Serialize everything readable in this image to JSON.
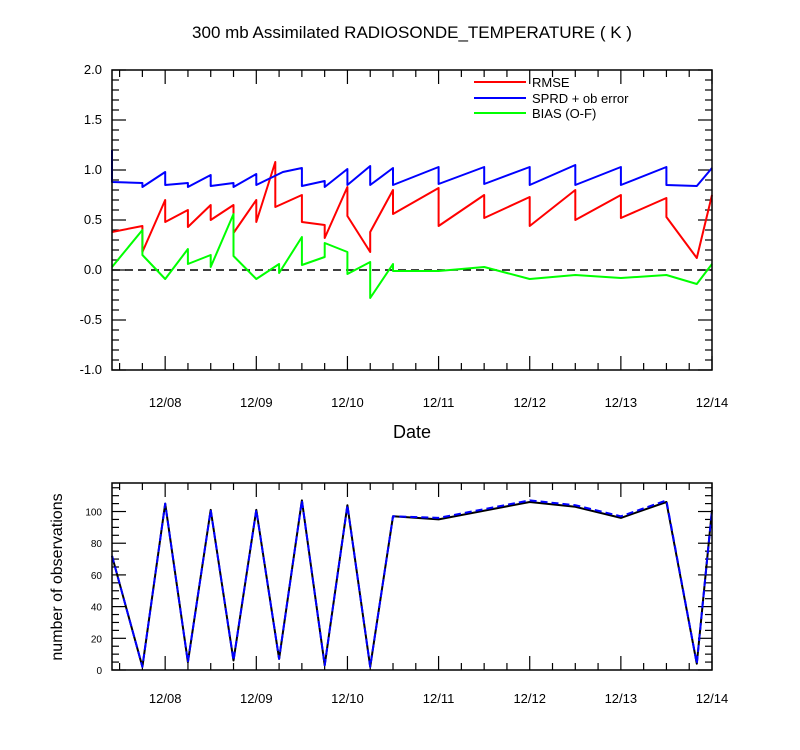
{
  "chart_data": [
    {
      "type": "line",
      "title": "300 mb Assimilated RADIOSONDE_TEMPERATURE ( K )",
      "xlabel": "Date",
      "ylabel": "",
      "ylim": [
        -1.0,
        2.0
      ],
      "yticks": [
        "2.0",
        "1.5",
        "1.0",
        "0.5",
        "0.0",
        "-0.5",
        "-1.0"
      ],
      "xticks": [
        "12/08",
        "12/09",
        "12/10",
        "12/11",
        "12/12",
        "12/13",
        "12/14"
      ],
      "xlim": [
        "12/07 10:00",
        "12/14 00:00"
      ],
      "reference_line": 0.0,
      "legend_position": "top-right",
      "series": [
        {
          "name": "RMSE",
          "color": "#ff0000",
          "points": [
            [
              "12/07 10:00",
              0.38
            ],
            [
              "12/07 18:00",
              0.44
            ],
            [
              "12/07 18:00",
              0.18
            ],
            [
              "12/08 00:00",
              0.7
            ],
            [
              "12/08 00:00",
              0.48
            ],
            [
              "12/08 06:00",
              0.6
            ],
            [
              "12/08 06:00",
              0.43
            ],
            [
              "12/08 12:00",
              0.65
            ],
            [
              "12/08 12:00",
              0.5
            ],
            [
              "12/08 18:00",
              0.65
            ],
            [
              "12/08 18:00",
              0.37
            ],
            [
              "12/09 00:00",
              0.7
            ],
            [
              "12/09 00:00",
              0.48
            ],
            [
              "12/09 05:00",
              1.08
            ],
            [
              "12/09 05:00",
              0.63
            ],
            [
              "12/09 12:00",
              0.75
            ],
            [
              "12/09 12:00",
              0.48
            ],
            [
              "12/09 18:00",
              0.45
            ],
            [
              "12/09 18:00",
              0.32
            ],
            [
              "12/10 00:00",
              0.83
            ],
            [
              "12/10 00:00",
              0.54
            ],
            [
              "12/10 06:00",
              0.18
            ],
            [
              "12/10 06:00",
              0.38
            ],
            [
              "12/10 12:00",
              0.8
            ],
            [
              "12/10 12:00",
              0.56
            ],
            [
              "12/11 00:00",
              0.82
            ],
            [
              "12/11 00:00",
              0.44
            ],
            [
              "12/11 12:00",
              0.75
            ],
            [
              "12/11 12:00",
              0.52
            ],
            [
              "12/12 00:00",
              0.73
            ],
            [
              "12/12 00:00",
              0.44
            ],
            [
              "12/12 12:00",
              0.8
            ],
            [
              "12/12 12:00",
              0.5
            ],
            [
              "12/13 00:00",
              0.75
            ],
            [
              "12/13 00:00",
              0.52
            ],
            [
              "12/13 12:00",
              0.72
            ],
            [
              "12/13 12:00",
              0.53
            ],
            [
              "12/13 20:00",
              0.12
            ],
            [
              "12/14 00:00",
              0.75
            ]
          ]
        },
        {
          "name": "SPRD + ob error",
          "color": "#0000ff",
          "points": [
            [
              "12/07 10:00",
              1.2
            ],
            [
              "12/07 10:00",
              0.88
            ],
            [
              "12/07 18:00",
              0.87
            ],
            [
              "12/07 18:00",
              0.83
            ],
            [
              "12/08 00:00",
              0.98
            ],
            [
              "12/08 00:00",
              0.85
            ],
            [
              "12/08 06:00",
              0.87
            ],
            [
              "12/08 06:00",
              0.83
            ],
            [
              "12/08 12:00",
              0.95
            ],
            [
              "12/08 12:00",
              0.84
            ],
            [
              "12/08 18:00",
              0.87
            ],
            [
              "12/08 18:00",
              0.83
            ],
            [
              "12/09 00:00",
              0.96
            ],
            [
              "12/09 00:00",
              0.85
            ],
            [
              "12/09 07:00",
              0.98
            ],
            [
              "12/09 12:00",
              1.02
            ],
            [
              "12/09 12:00",
              0.84
            ],
            [
              "12/09 18:00",
              0.89
            ],
            [
              "12/09 18:00",
              0.83
            ],
            [
              "12/10 00:00",
              1.01
            ],
            [
              "12/10 00:00",
              0.85
            ],
            [
              "12/10 06:00",
              1.04
            ],
            [
              "12/10 06:00",
              0.85
            ],
            [
              "12/10 12:00",
              1.02
            ],
            [
              "12/10 12:00",
              0.85
            ],
            [
              "12/11 00:00",
              1.03
            ],
            [
              "12/11 00:00",
              0.86
            ],
            [
              "12/11 12:00",
              1.03
            ],
            [
              "12/11 12:00",
              0.86
            ],
            [
              "12/12 00:00",
              1.03
            ],
            [
              "12/12 00:00",
              0.85
            ],
            [
              "12/12 12:00",
              1.05
            ],
            [
              "12/12 12:00",
              0.85
            ],
            [
              "12/13 00:00",
              1.03
            ],
            [
              "12/13 00:00",
              0.85
            ],
            [
              "12/13 12:00",
              1.03
            ],
            [
              "12/13 12:00",
              0.85
            ],
            [
              "12/13 20:00",
              0.84
            ],
            [
              "12/14 00:00",
              1.02
            ]
          ]
        },
        {
          "name": "BIAS (O-F)",
          "color": "#00ff00",
          "points": [
            [
              "12/07 10:00",
              0.03
            ],
            [
              "12/07 18:00",
              0.4
            ],
            [
              "12/07 18:00",
              0.15
            ],
            [
              "12/08 00:00",
              -0.09
            ],
            [
              "12/08 06:00",
              0.21
            ],
            [
              "12/08 06:00",
              0.06
            ],
            [
              "12/08 12:00",
              0.15
            ],
            [
              "12/08 12:00",
              0.03
            ],
            [
              "12/08 18:00",
              0.56
            ],
            [
              "12/08 18:00",
              0.14
            ],
            [
              "12/09 00:00",
              -0.09
            ],
            [
              "12/09 06:00",
              0.06
            ],
            [
              "12/09 06:00",
              -0.03
            ],
            [
              "12/09 12:00",
              0.33
            ],
            [
              "12/09 12:00",
              0.05
            ],
            [
              "12/09 18:00",
              0.13
            ],
            [
              "12/09 18:00",
              0.27
            ],
            [
              "12/10 00:00",
              0.18
            ],
            [
              "12/10 00:00",
              -0.04
            ],
            [
              "12/10 06:00",
              0.08
            ],
            [
              "12/10 06:00",
              -0.28
            ],
            [
              "12/10 12:00",
              0.06
            ],
            [
              "12/10 12:00",
              -0.01
            ],
            [
              "12/11 00:00",
              -0.01
            ],
            [
              "12/11 12:00",
              0.03
            ],
            [
              "12/12 00:00",
              -0.09
            ],
            [
              "12/12 12:00",
              -0.05
            ],
            [
              "12/13 00:00",
              -0.08
            ],
            [
              "12/13 12:00",
              -0.05
            ],
            [
              "12/13 20:00",
              -0.14
            ],
            [
              "12/14 00:00",
              0.06
            ]
          ]
        }
      ]
    },
    {
      "type": "line",
      "title": "",
      "xlabel": "",
      "ylabel": "number of observations",
      "ylim": [
        0,
        118
      ],
      "yticks": [
        "0",
        "20",
        "40",
        "60",
        "80",
        "100"
      ],
      "xticks": [
        "12/08",
        "12/09",
        "12/10",
        "12/11",
        "12/12",
        "12/13",
        "12/14"
      ],
      "xlim": [
        "12/07 10:00",
        "12/14 00:00"
      ],
      "series": [
        {
          "color": "#000000",
          "points": [
            [
              "12/07 10:00",
              72
            ],
            [
              "12/07 18:00",
              2
            ],
            [
              "12/08 00:00",
              105
            ],
            [
              "12/08 06:00",
              5
            ],
            [
              "12/08 12:00",
              101
            ],
            [
              "12/08 18:00",
              6
            ],
            [
              "12/09 00:00",
              101
            ],
            [
              "12/09 06:00",
              7
            ],
            [
              "12/09 12:00",
              107
            ],
            [
              "12/09 18:00",
              3
            ],
            [
              "12/10 00:00",
              104
            ],
            [
              "12/10 06:00",
              2
            ],
            [
              "12/10 12:00",
              97
            ],
            [
              "12/11 00:00",
              95
            ],
            [
              "12/12 00:00",
              106
            ],
            [
              "12/12 12:00",
              103
            ],
            [
              "12/13 00:00",
              96
            ],
            [
              "12/13 12:00",
              106
            ],
            [
              "12/13 20:00",
              4
            ],
            [
              "12/14 00:00",
              101
            ]
          ]
        },
        {
          "color": "#0000ff",
          "points": [
            [
              "12/07 10:00",
              72
            ],
            [
              "12/07 18:00",
              2
            ],
            [
              "12/08 00:00",
              105
            ],
            [
              "12/08 06:00",
              5
            ],
            [
              "12/08 12:00",
              101
            ],
            [
              "12/08 18:00",
              6
            ],
            [
              "12/09 00:00",
              101
            ],
            [
              "12/09 06:00",
              7
            ],
            [
              "12/09 12:00",
              107
            ],
            [
              "12/09 18:00",
              3
            ],
            [
              "12/10 00:00",
              104
            ],
            [
              "12/10 06:00",
              2
            ],
            [
              "12/10 12:00",
              97
            ],
            [
              "12/11 00:00",
              96
            ],
            [
              "12/12 00:00",
              107
            ],
            [
              "12/12 12:00",
              104
            ],
            [
              "12/13 00:00",
              97
            ],
            [
              "12/13 12:00",
              107
            ],
            [
              "12/13 20:00",
              4
            ],
            [
              "12/14 00:00",
              101
            ]
          ]
        }
      ]
    }
  ]
}
